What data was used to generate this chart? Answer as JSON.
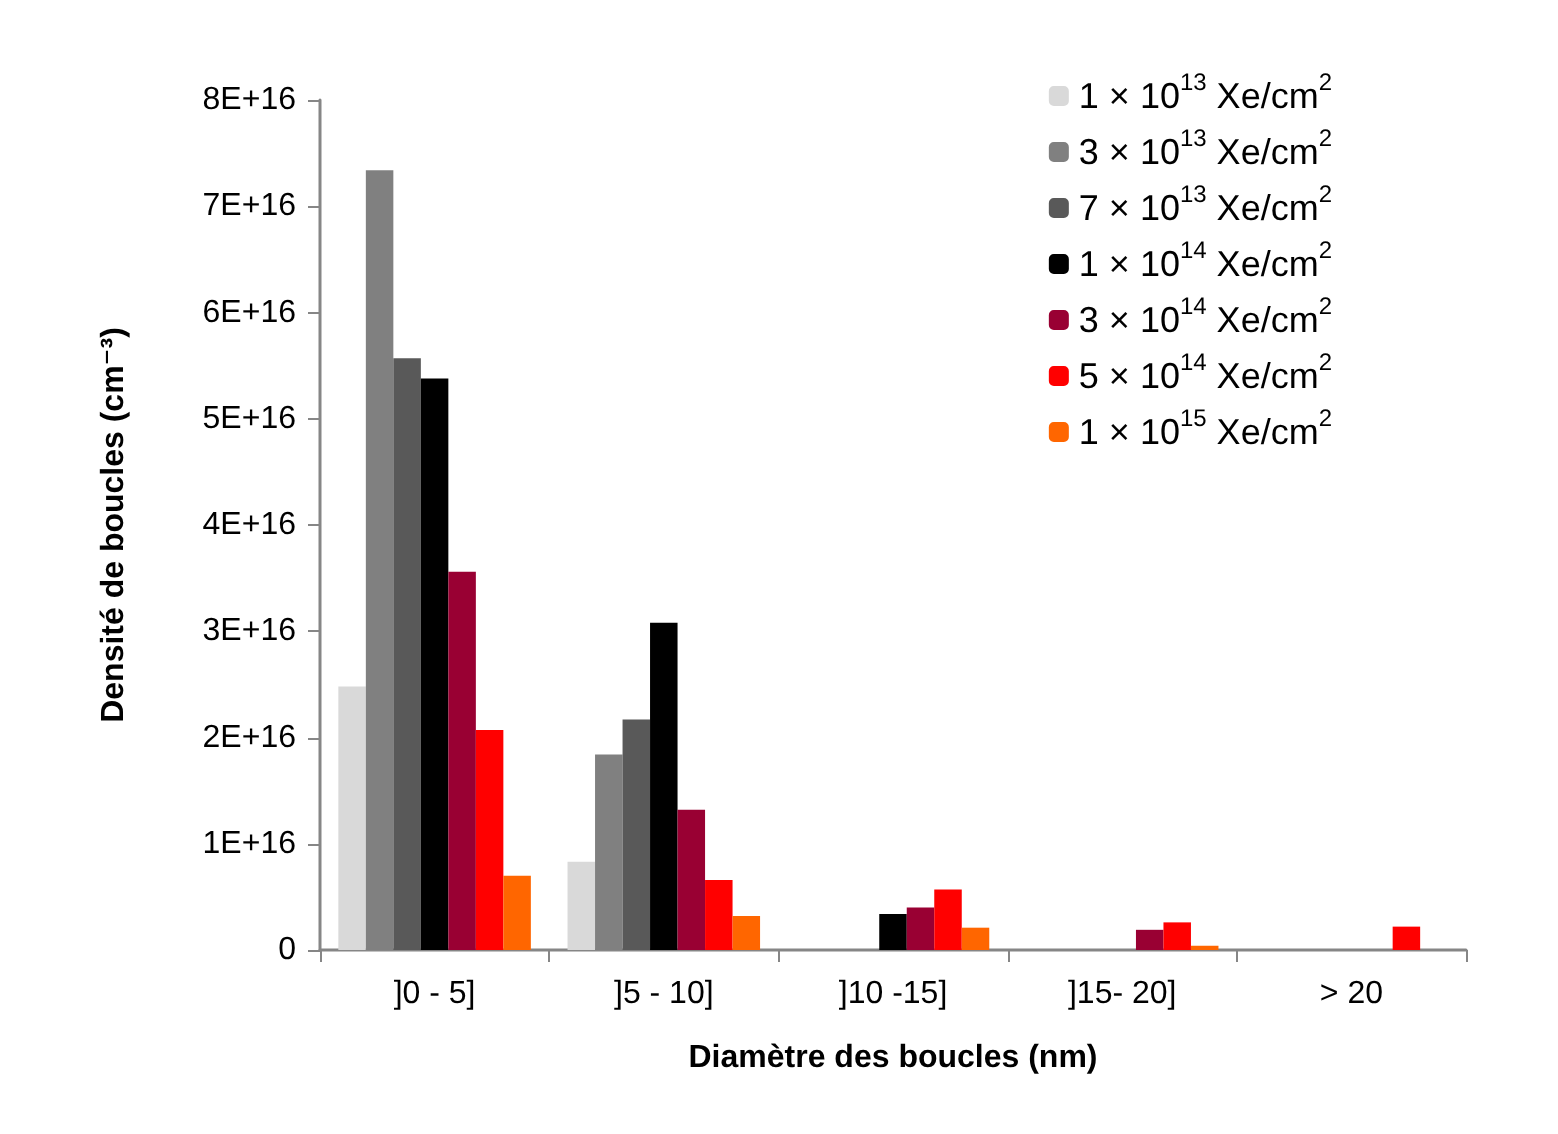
{
  "chart_data": {
    "type": "bar",
    "xlabel": "Diamètre des boucles (nm)",
    "ylabel": "Densité de boucles (cm⁻³)",
    "categories": [
      "]0 - 5]",
      "]5 - 10]",
      "]10 -15]",
      "]15- 20]",
      "> 20"
    ],
    "series": [
      {
        "name": "1 × 10$^{13}$ Xe/cm$^{2}$",
        "color": "#d9d9d9",
        "values": [
          2.48e+16,
          8300000000000000.0,
          null,
          null,
          null
        ]
      },
      {
        "name": "3 × 10$^{13}$ Xe/cm$^{2}$",
        "color": "#808080",
        "values": [
          7.34e+16,
          1.84e+16,
          null,
          null,
          null
        ]
      },
      {
        "name": "7 × 10$^{13}$ Xe/cm$^{2}$",
        "color": "#595959",
        "values": [
          5.57e+16,
          2.17e+16,
          null,
          null,
          null
        ]
      },
      {
        "name": "1 × 10$^{14}$ Xe/cm$^{2}$",
        "color": "#000000",
        "values": [
          5.38e+16,
          3.08e+16,
          3400000000000000.0,
          null,
          null
        ]
      },
      {
        "name": "3 × 10$^{14}$ Xe/cm$^{2}$",
        "color": "#990033",
        "values": [
          3.56e+16,
          1.32e+16,
          4000000000000000.0,
          1900000000000000.0,
          null
        ]
      },
      {
        "name": "5 × 10$^{14}$ Xe/cm$^{2}$",
        "color": "#ff0000",
        "values": [
          2.07e+16,
          6600000000000000.0,
          5700000000000000.0,
          2600000000000000.0,
          2200000000000000.0
        ]
      },
      {
        "name": "1 × 10$^{15}$ Xe/cm$^{2}$",
        "color": "#ff6600",
        "values": [
          7000000000000000.0,
          3200000000000000.0,
          2100000000000000.0,
          400000000000000.0,
          null
        ]
      }
    ],
    "ylim": [
      0,
      8e+16
    ],
    "yticks": [
      {
        "value": 0,
        "label": "0"
      },
      {
        "value": 1e+16,
        "label": "1E+16"
      },
      {
        "value": 2e+16,
        "label": "2E+16"
      },
      {
        "value": 3e+16,
        "label": "3E+16"
      },
      {
        "value": 4e+16,
        "label": "4E+16"
      },
      {
        "value": 5e+16,
        "label": "5E+16"
      },
      {
        "value": 6e+16,
        "label": "6E+16"
      },
      {
        "value": 7e+16,
        "label": "7E+16"
      },
      {
        "value": 8e+16,
        "label": "8E+16"
      }
    ],
    "grid": false,
    "legend": "top right"
  }
}
